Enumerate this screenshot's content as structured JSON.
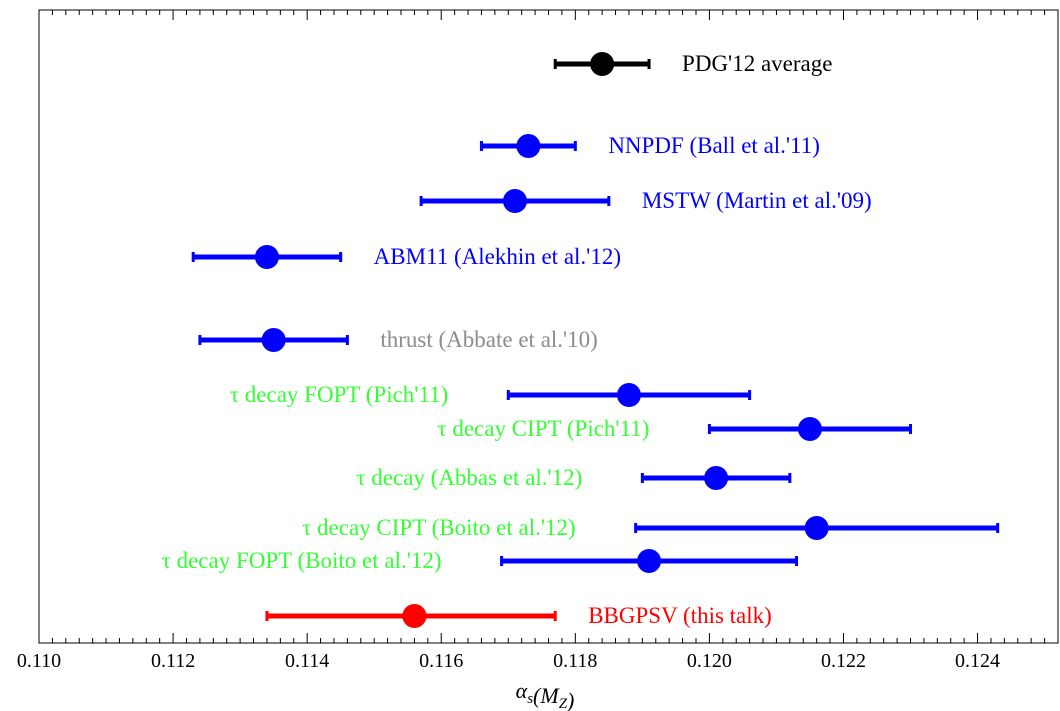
{
  "chart_data": {
    "type": "scatter",
    "subtype": "horizontal error-bar plot",
    "title": "",
    "xlabel": "αs(MZ)",
    "ylabel": "",
    "xlim": [
      0.11,
      0.1252
    ],
    "xticks": [
      "0.110",
      "0.112",
      "0.114",
      "0.116",
      "0.118",
      "0.120",
      "0.122",
      "0.124"
    ],
    "grid": false,
    "legend": "none (labels placed next to each point)",
    "colors": {
      "black": "#000000",
      "blue": "#0000ff",
      "gray": "#8c8c8c",
      "green": "#33ff33",
      "red": "#ff0000"
    },
    "series": [
      {
        "label": "PDG'12 average",
        "value": 0.1184,
        "low": 0.1177,
        "high": 0.1191,
        "color": "#000000",
        "label_side": "right"
      },
      {
        "label": "NNPDF (Ball et al.'11)",
        "value": 0.1173,
        "low": 0.1166,
        "high": 0.118,
        "color": "#0000ff",
        "label_side": "right"
      },
      {
        "label": "MSTW (Martin et al.'09)",
        "value": 0.1171,
        "low": 0.1157,
        "high": 0.1185,
        "color": "#0000ff",
        "label_side": "right"
      },
      {
        "label": "ABM11 (Alekhin et al.'12)",
        "value": 0.1134,
        "low": 0.1123,
        "high": 0.1145,
        "color": "#0000ff",
        "label_side": "right"
      },
      {
        "label": "thrust (Abbate et al.'10)",
        "value": 0.1135,
        "low": 0.1124,
        "high": 0.1146,
        "color": "#0000ff",
        "label_color": "#8c8c8c",
        "label_side": "right"
      },
      {
        "label": "τ decay FOPT (Pich'11)",
        "value": 0.1188,
        "low": 0.117,
        "high": 0.1206,
        "color": "#0000ff",
        "label_color": "#33ff33",
        "label_side": "left"
      },
      {
        "label": "τ decay CIPT (Pich'11)",
        "value": 0.1215,
        "low": 0.12,
        "high": 0.123,
        "color": "#0000ff",
        "label_color": "#33ff33",
        "label_side": "left"
      },
      {
        "label": "τ decay (Abbas et al.'12)",
        "value": 0.1201,
        "low": 0.119,
        "high": 0.1212,
        "color": "#0000ff",
        "label_color": "#33ff33",
        "label_side": "left"
      },
      {
        "label": "τ decay CIPT (Boito et al.'12)",
        "value": 0.1216,
        "low": 0.1189,
        "high": 0.1243,
        "color": "#0000ff",
        "label_color": "#33ff33",
        "label_side": "left"
      },
      {
        "label": "τ decay FOPT (Boito et al.'12)",
        "value": 0.1191,
        "low": 0.1169,
        "high": 0.1213,
        "color": "#0000ff",
        "label_color": "#33ff33",
        "label_side": "left"
      },
      {
        "label": "BBGPSV (this talk)",
        "value": 0.1156,
        "low": 0.1134,
        "high": 0.1177,
        "color": "#ff0000",
        "label_side": "right"
      }
    ]
  }
}
